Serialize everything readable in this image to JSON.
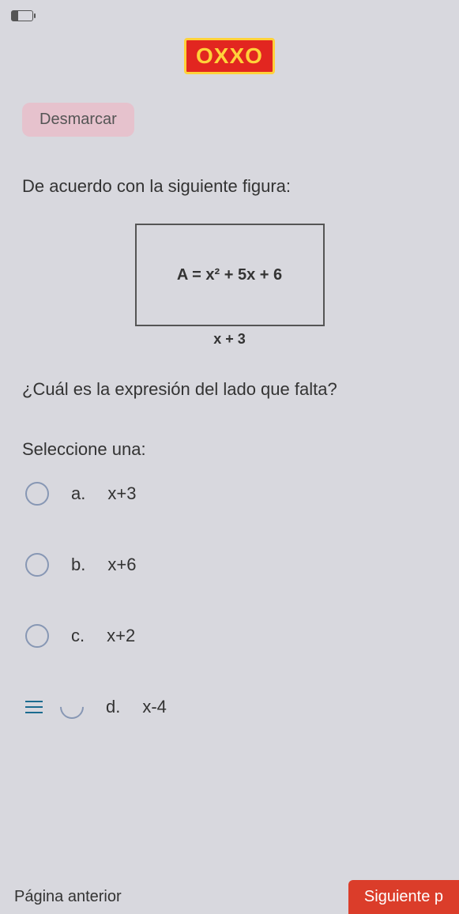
{
  "logo": {
    "text": "OXXO"
  },
  "buttons": {
    "desmarcar": "Desmarcar"
  },
  "intro": "De acuerdo con la siguiente figura:",
  "figure": {
    "area": "A = x² + 5x + 6",
    "bottom": "x + 3"
  },
  "question": "¿Cuál es la expresión del lado que falta?",
  "select_one": "Seleccione una:",
  "options": {
    "a": {
      "letter": "a.",
      "text": "x+3"
    },
    "b": {
      "letter": "b.",
      "text": "x+6"
    },
    "c": {
      "letter": "c.",
      "text": "x+2"
    },
    "d": {
      "letter": "d.",
      "text": "x-4"
    }
  },
  "footer": {
    "prev": "Página anterior",
    "next": "Siguiente p"
  }
}
